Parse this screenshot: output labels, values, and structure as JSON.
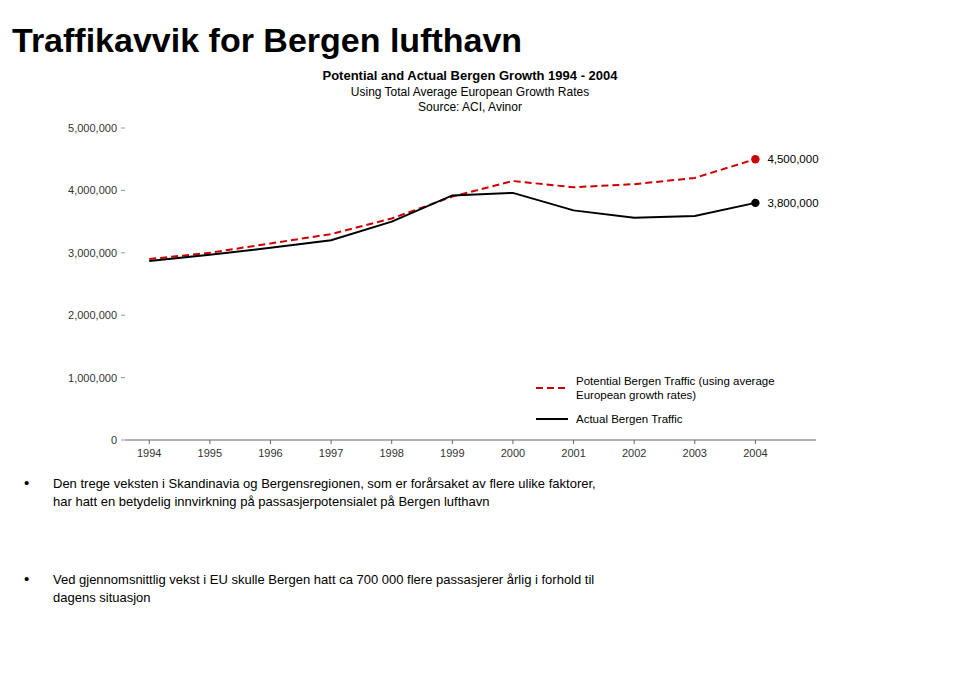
{
  "chart_data": {
    "type": "line",
    "title": "Traffikavvik for Bergen lufthavn",
    "subtitle": [
      "Potential and Actual Bergen Growth 1994 - 2004",
      "Using Total Average European Growth Rates",
      "Source: ACI, Avinor"
    ],
    "x": [
      1994,
      1995,
      1996,
      1997,
      1998,
      1999,
      2000,
      2001,
      2002,
      2003,
      2004
    ],
    "series": [
      {
        "name": "Potential Bergen Traffic (using average\nEuropean growth rates)",
        "color": "#cc0000",
        "line_style": "dashed",
        "values": [
          2900000,
          3000000,
          3150000,
          3300000,
          3550000,
          3900000,
          4150000,
          4050000,
          4100000,
          4200000,
          4500000
        ]
      },
      {
        "name": "Actual Bergen Traffic",
        "color": "#000000",
        "line_style": "solid",
        "values": [
          2870000,
          2970000,
          3080000,
          3200000,
          3500000,
          3920000,
          3960000,
          3680000,
          3560000,
          3590000,
          3800000
        ]
      }
    ],
    "xlim": [
      1993.6,
      2005.0
    ],
    "xticks": [
      1994,
      1995,
      1996,
      1997,
      1998,
      1999,
      2000,
      2001,
      2002,
      2003,
      2004
    ],
    "ylim": [
      0,
      5000000
    ],
    "yticks": [
      0,
      {
        "value": 1000000,
        "label": "1,000,000"
      },
      {
        "value": 2000000,
        "label": "2,000,000"
      },
      {
        "value": 3000000,
        "label": "3,000,000"
      },
      {
        "value": 4000000,
        "label": "4,000,000"
      },
      {
        "value": 5000000,
        "label": "5,000,000"
      }
    ],
    "annotations": [
      {
        "text": "4,500,000",
        "x": 2004,
        "y": 4500000
      },
      {
        "text": "3,800,000",
        "x": 2004,
        "y": 3800000
      }
    ],
    "notes": [
      {
        "bullet": "•",
        "text": "Den trege veksten i Skandinavia og Bergensregionen, som er forårsaket av flere ulike faktorer,\nhar hatt en betydelig innvirkning på passasjerpotensialet på Bergen lufthavn"
      },
      {
        "bullet": "•",
        "text": "Ved gjennomsnittlig vekst i EU skulle Bergen hatt ca 700 000 flere passasjerer årlig i forhold til\ndagens situasjon"
      }
    ],
    "legend": "lower right",
    "grid": false
  }
}
